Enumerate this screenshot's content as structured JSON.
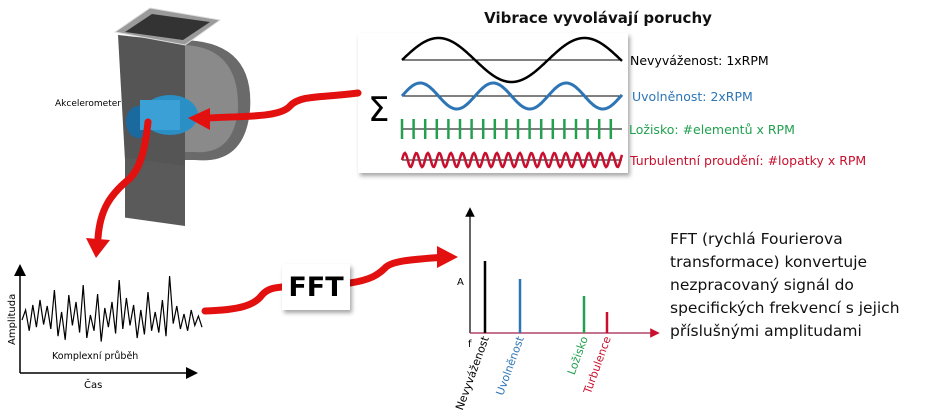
{
  "title": "Vibrace vyvolávají poruchy",
  "sum_symbol": "Σ",
  "fault_waves": [
    {
      "label": "Nevyváženost: 1xRPM",
      "color": "#000000"
    },
    {
      "label": "Uvolněnost: 2xRPM",
      "color": "#2e75b6"
    },
    {
      "label": "Ložisko: #elementů x RPM",
      "color": "#22a050"
    },
    {
      "label": "Turbulentní proudění: #lopatky x RPM",
      "color": "#c8102e"
    }
  ],
  "fan": {
    "sensor_label": "Akcelerometer"
  },
  "waveform": {
    "y_label": "Amplituda",
    "x_label": "Čas",
    "caption": "Komplexní průběh"
  },
  "fft_label": "FFT",
  "spectrum": {
    "y_label": "A",
    "x_label": "f",
    "peaks": [
      {
        "label": "Nevyváženost",
        "color": "#000000",
        "amplitude": 0.72
      },
      {
        "label": "Uvolněnost",
        "color": "#2e75b6",
        "amplitude": 0.54
      },
      {
        "label": "Ložisko",
        "color": "#22a050",
        "amplitude": 0.37
      },
      {
        "label": "Turbulence",
        "color": "#c8102e",
        "amplitude": 0.21
      }
    ]
  },
  "description": [
    "FFT (rychlá Fourierova",
    "transformace) konvertuje",
    "nezpracovaný signál do",
    "specifických frekvencí s jejich",
    "příslušnými amplitudami"
  ]
}
